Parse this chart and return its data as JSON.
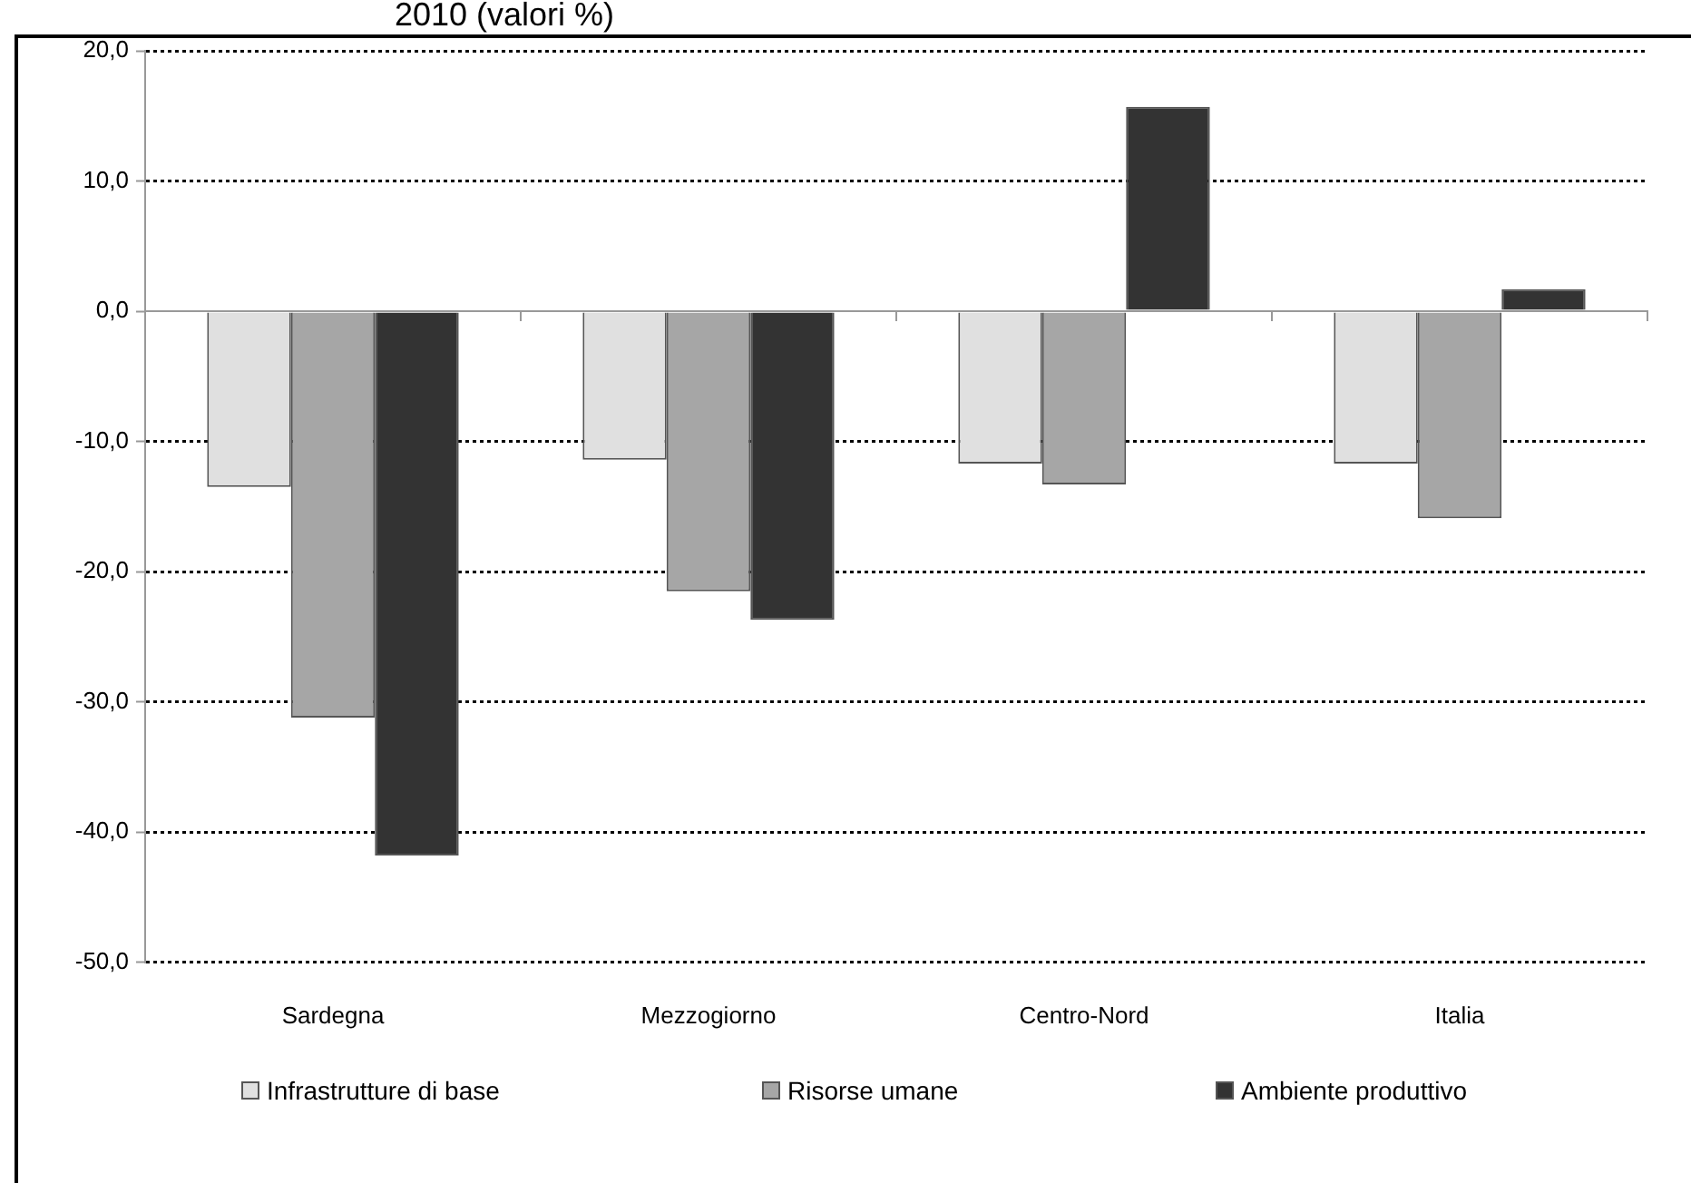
{
  "chart_data": {
    "type": "bar",
    "title": "2010 (valori %)",
    "categories": [
      "Sardegna",
      "Mezzogiorno",
      "Centro-Nord",
      "Italia"
    ],
    "series": [
      {
        "name": "Infrastrutture di base",
        "color": "#e0e0e0",
        "values": [
          -13.5,
          -11.4,
          -11.7,
          -11.7
        ]
      },
      {
        "name": "Risorse umane",
        "color": "#a6a6a6",
        "values": [
          -31.2,
          -21.5,
          -13.3,
          -15.9
        ]
      },
      {
        "name": "Ambiente produttivo",
        "color": "#333333",
        "values": [
          -41.8,
          -23.7,
          15.7,
          1.7
        ]
      }
    ],
    "ylim": [
      -50,
      20
    ],
    "yticks": [
      {
        "value": -50,
        "label": "-50,0"
      },
      {
        "value": -40,
        "label": "-40,0"
      },
      {
        "value": -30,
        "label": "-30,0"
      },
      {
        "value": -20,
        "label": "-20,0"
      },
      {
        "value": -10,
        "label": "-10,0"
      },
      {
        "value": 0,
        "label": "0,0"
      },
      {
        "value": 10,
        "label": "10,0"
      },
      {
        "value": 20,
        "label": "20,0"
      }
    ],
    "grid": "y",
    "legend": "bottom"
  }
}
